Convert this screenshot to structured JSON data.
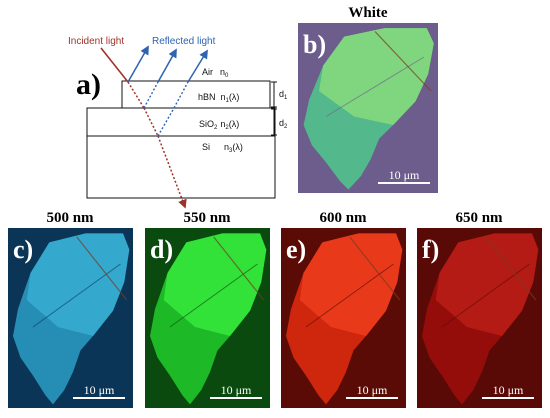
{
  "diagram": {
    "panel_label": "a)",
    "incident_label": "Incident light",
    "reflected_label": "Reflected light",
    "layers": [
      {
        "name": "Air",
        "index": "n",
        "sub": "0",
        "lambda": ""
      },
      {
        "name": "hBN",
        "index": "n",
        "sub": "1",
        "lambda": "(λ)"
      },
      {
        "name": "SiO",
        "name_sub": "2",
        "index": "n",
        "sub": "2",
        "lambda": "(λ)"
      },
      {
        "name": "Si",
        "index": "n",
        "sub": "3",
        "lambda": "(λ)"
      }
    ],
    "thickness_labels": [
      {
        "d": "d",
        "sub": "1"
      },
      {
        "d": "d",
        "sub": "2"
      }
    ],
    "colors": {
      "incident": "#a0322a",
      "reflected": "#2f63b0"
    }
  },
  "panels": [
    {
      "id": "b",
      "label": "b)",
      "title": "White",
      "scale_text": "10 μm",
      "bg": "#6c5d8c",
      "flake": "#4fc88c",
      "light": "#8ee07a"
    },
    {
      "id": "c",
      "label": "c)",
      "title": "500 nm",
      "scale_text": "10 μm",
      "bg": "#0b3556",
      "flake": "#2c9cc4",
      "light": "#3ab2d6"
    },
    {
      "id": "d",
      "label": "d)",
      "title": "550 nm",
      "scale_text": "10 μm",
      "bg": "#0a4a0e",
      "flake": "#22cc2c",
      "light": "#3af040"
    },
    {
      "id": "e",
      "label": "e)",
      "title": "600 nm",
      "scale_text": "10 μm",
      "bg": "#5a0b05",
      "flake": "#e42c10",
      "light": "#f24020"
    },
    {
      "id": "f",
      "label": "f)",
      "title": "650 nm",
      "scale_text": "10 μm",
      "bg": "#5a0a06",
      "flake": "#a00e0c",
      "light": "#c0201a"
    }
  ]
}
